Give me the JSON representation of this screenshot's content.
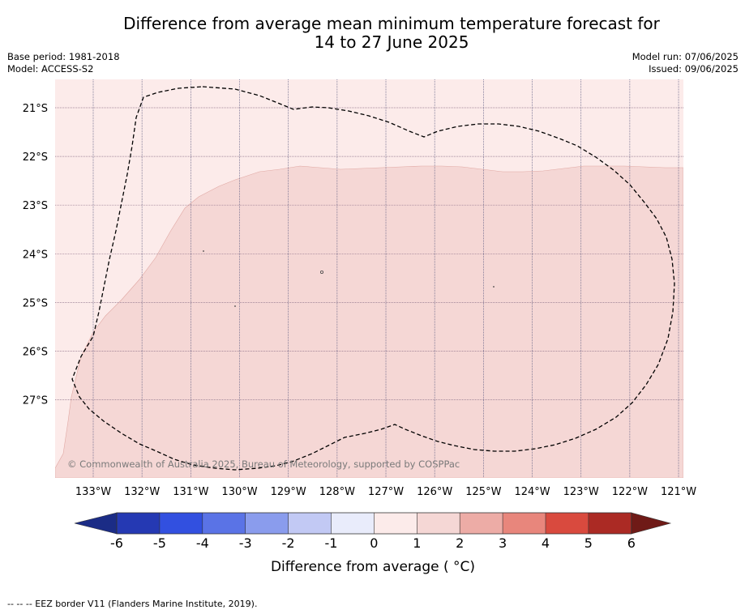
{
  "header": {
    "title_line1": "Difference from average mean minimum temperature forecast for",
    "title_line2": "14 to 27 June 2025",
    "base_period": "Base period: 1981-2018",
    "model": "Model: ACCESS-S2",
    "model_run": "Model run: 07/06/2025",
    "issued": "Issued: 09/06/2025"
  },
  "map": {
    "lat_labels": [
      "21°S",
      "22°S",
      "23°S",
      "24°S",
      "25°S",
      "26°S",
      "27°S"
    ],
    "lon_labels": [
      "133°W",
      "132°W",
      "131°W",
      "130°W",
      "129°W",
      "128°W",
      "127°W",
      "126°W",
      "125°W",
      "124°W",
      "123°W",
      "122°W",
      "121°W"
    ],
    "copyright": "© Commonwealth of Australia 2025, Bureau of Meteorology, supported by COSPPac",
    "fill_colors": {
      "zero_to_one": "#fcebea",
      "one_to_two": "#f5d7d5"
    }
  },
  "colorbar": {
    "ticks": [
      "-6",
      "-5",
      "-4",
      "-3",
      "-2",
      "-1",
      "0",
      "1",
      "2",
      "3",
      "4",
      "5",
      "6"
    ],
    "colors": [
      "#1b2c86",
      "#2539b3",
      "#3250e0",
      "#5a73e6",
      "#8a9ced",
      "#c2c9f4",
      "#e9ecfb",
      "#fcebea",
      "#f5d7d5",
      "#edaca6",
      "#e8867c",
      "#d94a3e",
      "#ab2a24",
      "#6f1a17"
    ],
    "label": "Difference from average ( °C)"
  },
  "footer": {
    "legend": "-- -- -- EEZ border V11 (Flanders Marine Institute, 2019)."
  }
}
